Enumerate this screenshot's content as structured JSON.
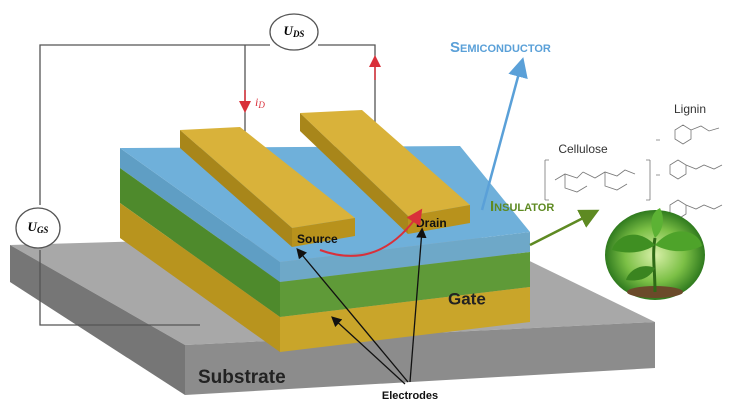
{
  "circuit": {
    "drain_source_voltage": {
      "symbol": "U",
      "subscript": "DS"
    },
    "gate_source_voltage": {
      "symbol": "U",
      "subscript": "GS"
    },
    "drain_current": {
      "symbol": "i",
      "subscript": "D"
    }
  },
  "layers": {
    "semiconductor": "Semiconductor",
    "insulator": "Insulator",
    "gate": "Gate",
    "substrate": "Substrate"
  },
  "electrodes": {
    "source": "Source",
    "drain": "Drain",
    "label": "Electrodes"
  },
  "materials": {
    "cellulose": "Cellulose",
    "lignin": "Lignin"
  }
}
